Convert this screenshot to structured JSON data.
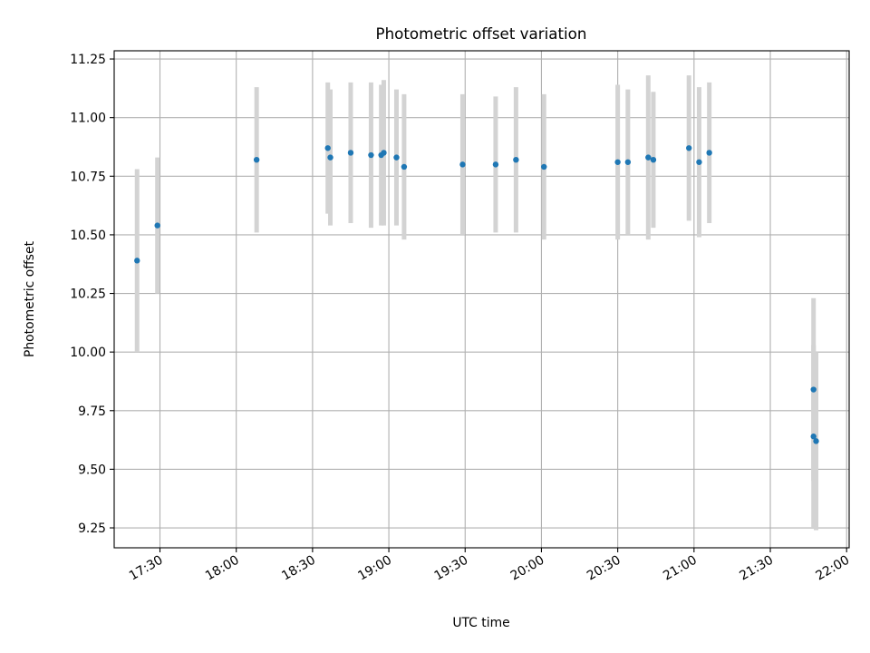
{
  "chart_data": {
    "type": "scatter",
    "title": "Photometric offset variation",
    "xlabel": "UTC time",
    "ylabel": "Photometric offset",
    "grid": true,
    "x_unit": "UTC time (HH:MM)",
    "xlim": [
      "17:12",
      "22:01"
    ],
    "ylim": [
      9.165,
      11.285
    ],
    "x_ticks": [
      "17:30",
      "18:00",
      "18:30",
      "19:00",
      "19:30",
      "20:00",
      "20:30",
      "21:00",
      "21:30",
      "22:00"
    ],
    "y_ticks": [
      "9.25",
      "9.50",
      "9.75",
      "10.00",
      "10.25",
      "10.50",
      "10.75",
      "11.00",
      "11.25"
    ],
    "colors": {
      "points": "#1f77b4",
      "error_bars": "#d3d3d3",
      "grid": "#b0b0b0"
    },
    "series": [
      {
        "points": [
          {
            "x": "17:21",
            "y": 10.39,
            "err": 0.39
          },
          {
            "x": "17:29",
            "y": 10.54,
            "err": 0.29
          },
          {
            "x": "18:08",
            "y": 10.82,
            "err": 0.31
          },
          {
            "x": "18:36",
            "y": 10.87,
            "err": 0.28
          },
          {
            "x": "18:37",
            "y": 10.83,
            "err": 0.29
          },
          {
            "x": "18:45",
            "y": 10.85,
            "err": 0.3
          },
          {
            "x": "18:53",
            "y": 10.84,
            "err": 0.31
          },
          {
            "x": "18:57",
            "y": 10.84,
            "err": 0.3
          },
          {
            "x": "18:58",
            "y": 10.85,
            "err": 0.31
          },
          {
            "x": "19:03",
            "y": 10.83,
            "err": 0.29
          },
          {
            "x": "19:06",
            "y": 10.79,
            "err": 0.31
          },
          {
            "x": "19:29",
            "y": 10.8,
            "err": 0.3
          },
          {
            "x": "19:42",
            "y": 10.8,
            "err": 0.29
          },
          {
            "x": "19:50",
            "y": 10.82,
            "err": 0.31
          },
          {
            "x": "20:01",
            "y": 10.79,
            "err": 0.31
          },
          {
            "x": "20:30",
            "y": 10.81,
            "err": 0.33
          },
          {
            "x": "20:34",
            "y": 10.81,
            "err": 0.31
          },
          {
            "x": "20:42",
            "y": 10.83,
            "err": 0.35
          },
          {
            "x": "20:44",
            "y": 10.82,
            "err": 0.29
          },
          {
            "x": "20:58",
            "y": 10.87,
            "err": 0.31
          },
          {
            "x": "21:02",
            "y": 10.81,
            "err": 0.32
          },
          {
            "x": "21:06",
            "y": 10.85,
            "err": 0.3
          },
          {
            "x": "21:47",
            "y": 9.84,
            "err": 0.39
          },
          {
            "x": "21:47",
            "y": 9.64,
            "err": 0.39
          },
          {
            "x": "21:48",
            "y": 9.62,
            "err": 0.38
          }
        ]
      }
    ]
  }
}
